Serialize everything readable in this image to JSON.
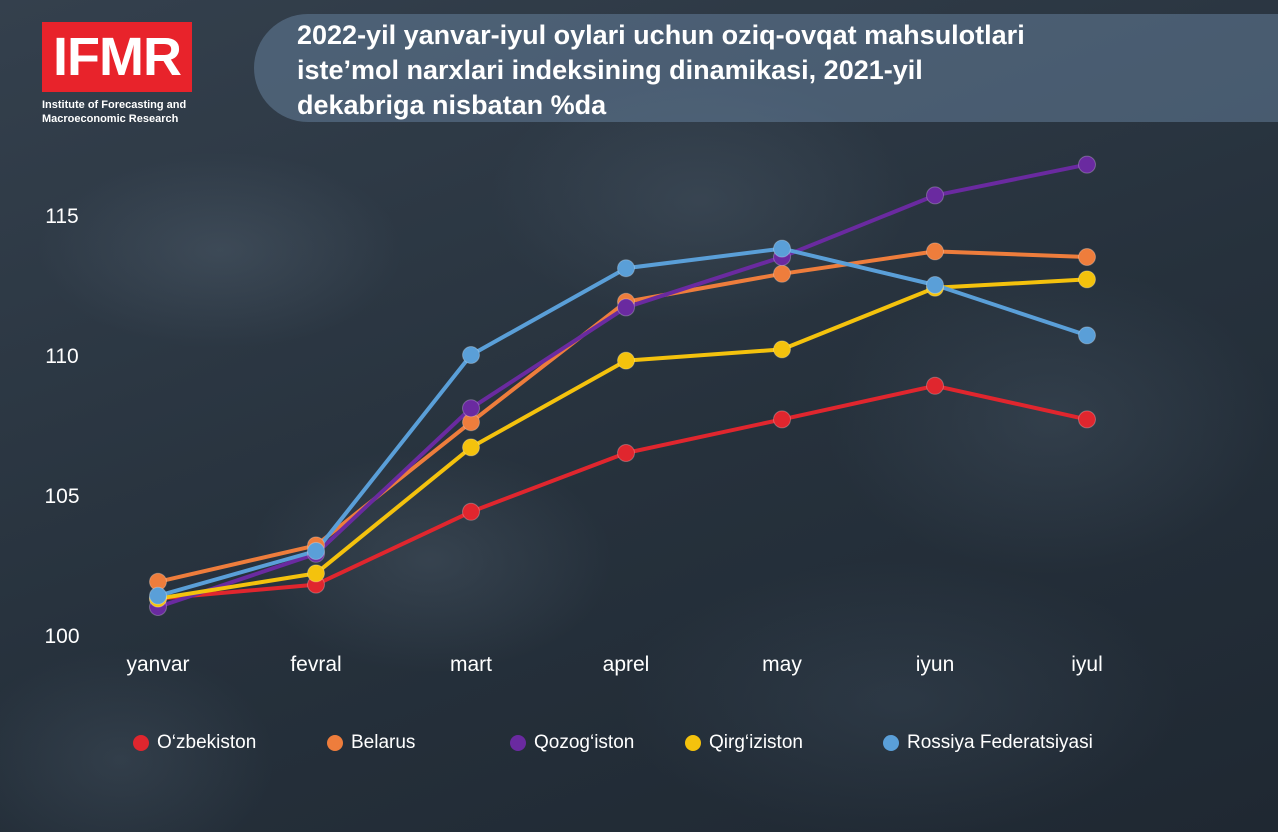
{
  "header": {
    "logo_text": "IFMR",
    "logo_subtitle_line1": "Institute of Forecasting and",
    "logo_subtitle_line2": "Macroeconomic Research",
    "title_line1": "2022-yil yanvar-iyul oylari uchun oziq-ovqat mahsulotlari",
    "title_line2": "iste’mol narxlari indeksining dinamikasi, 2021-yil",
    "title_line3": "dekabriga nisbatan %da"
  },
  "colors": {
    "logo_red": "#e8232b",
    "uzbekistan": "#e0262e",
    "belarus": "#ee7d3c",
    "kazakhstan": "#6a2aa0",
    "kyrgyzstan": "#f4c20d",
    "russia": "#5a9fd8"
  },
  "chart_data": {
    "type": "line",
    "title": "2022-yil yanvar-iyul oylari uchun oziq-ovqat mahsulotlari iste’mol narxlari indeksining dinamikasi, 2021-yil dekabriga nisbatan %da",
    "xlabel": "",
    "ylabel": "",
    "categories": [
      "yanvar",
      "fevral",
      "mart",
      "aprel",
      "may",
      "iyun",
      "iyul"
    ],
    "yticks": [
      100,
      105,
      110,
      115
    ],
    "ylim": [
      100,
      117
    ],
    "grid": false,
    "legend_position": "bottom",
    "series": [
      {
        "name": "O‘zbekiston",
        "color": "#e0262e",
        "values": [
          101.3,
          101.8,
          104.4,
          106.5,
          107.7,
          108.9,
          107.7
        ]
      },
      {
        "name": "Belarus",
        "color": "#ee7d3c",
        "values": [
          101.9,
          103.2,
          107.6,
          111.9,
          112.9,
          113.7,
          113.5
        ]
      },
      {
        "name": "Qozog‘iston",
        "color": "#6a2aa0",
        "values": [
          101.0,
          102.9,
          108.1,
          111.7,
          113.5,
          115.7,
          116.8
        ]
      },
      {
        "name": "Qirg‘iziston",
        "color": "#f4c20d",
        "values": [
          101.3,
          102.2,
          106.7,
          109.8,
          110.2,
          112.4,
          112.7
        ]
      },
      {
        "name": "Rossiya Federatsiyasi",
        "color": "#5a9fd8",
        "values": [
          101.4,
          103.0,
          110.0,
          113.1,
          113.8,
          112.5,
          110.7
        ]
      }
    ]
  }
}
